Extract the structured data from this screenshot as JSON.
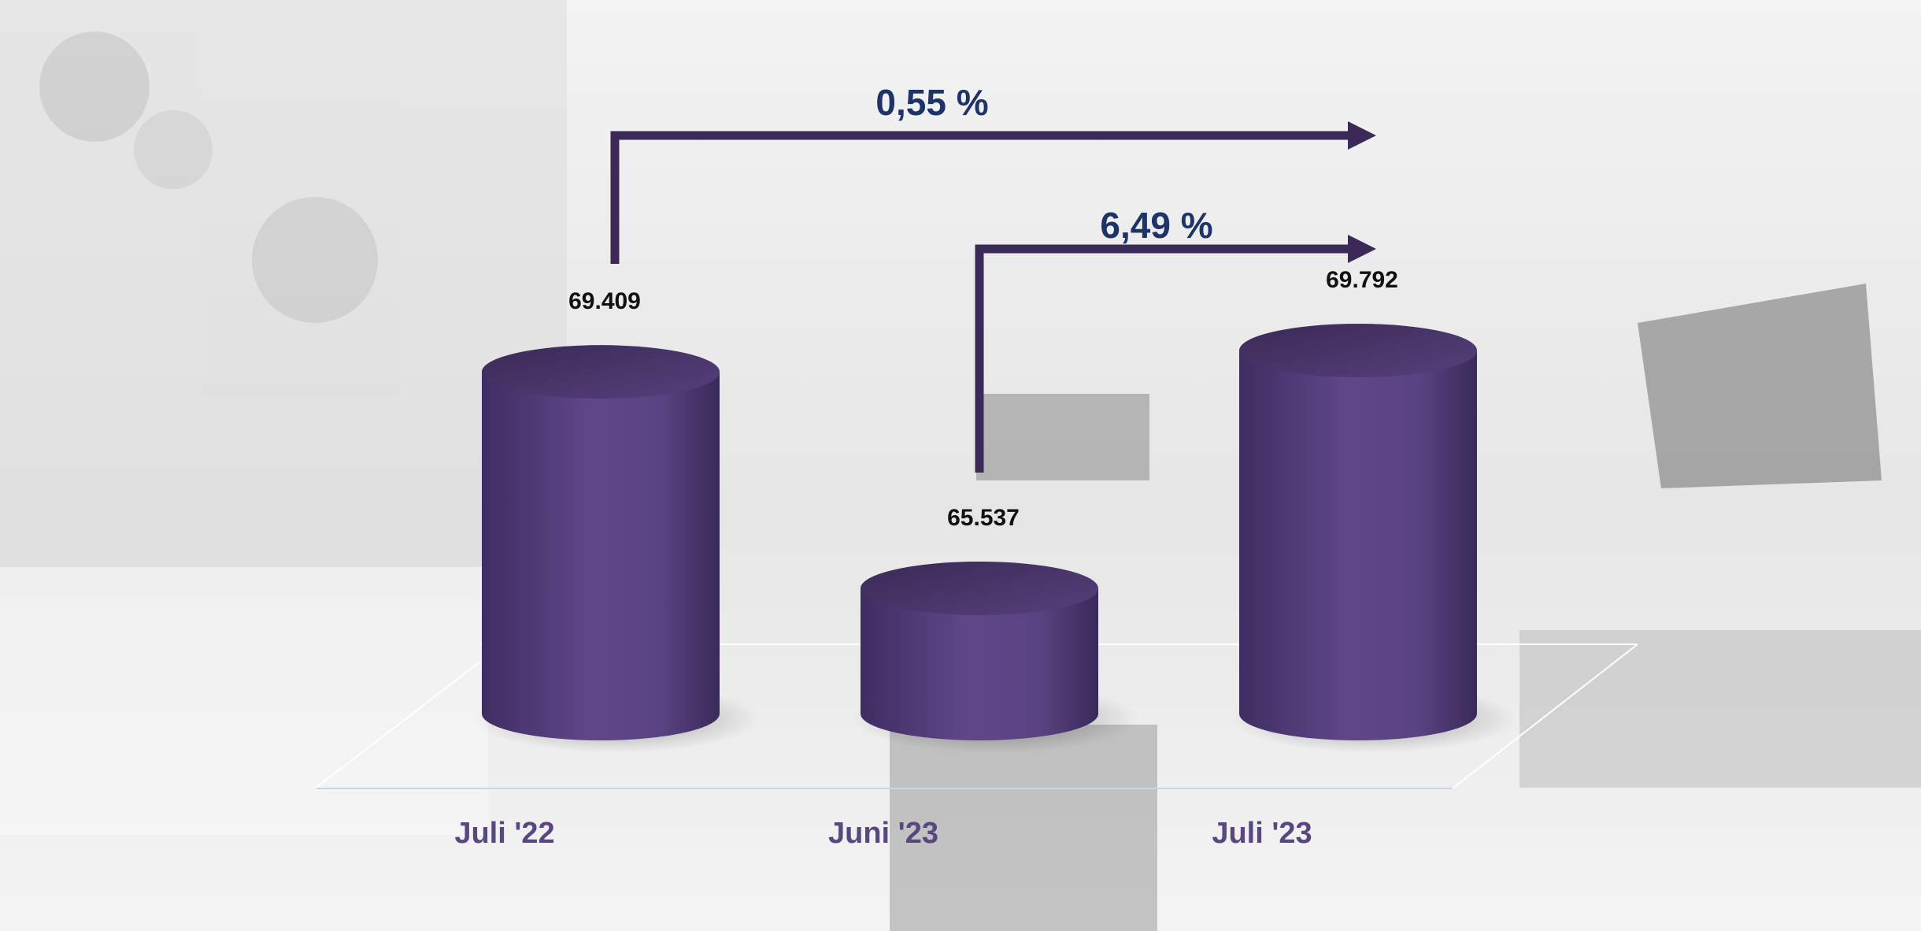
{
  "chart_data": {
    "type": "cylinder",
    "categories": [
      "Juli '22",
      "Juni '23",
      "Juli '23"
    ],
    "values": [
      69409,
      65537,
      69792
    ],
    "value_labels": [
      "69.409",
      "65.537",
      "69.792"
    ],
    "color": "#5a4383",
    "annotations": [
      "0,55 %",
      "6,49 %"
    ]
  }
}
